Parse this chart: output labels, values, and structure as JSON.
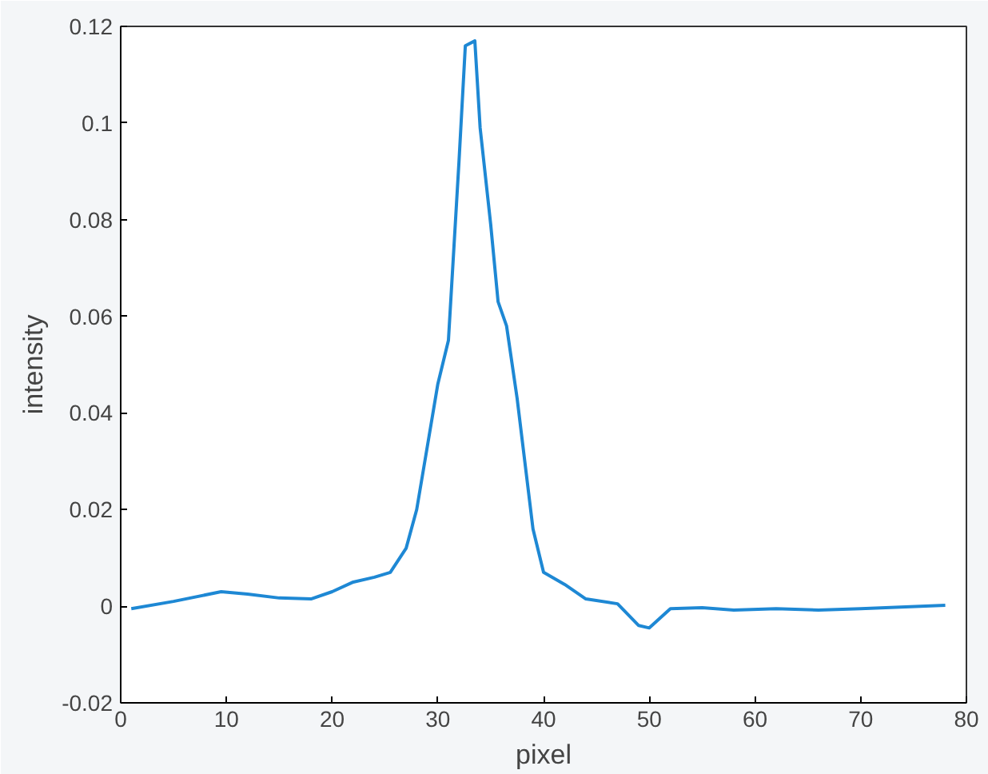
{
  "chart_data": {
    "type": "line",
    "xlabel": "pixel",
    "ylabel": "intensity",
    "x": [
      1,
      5,
      9.5,
      12,
      15,
      18,
      20,
      22,
      24,
      25.5,
      27,
      28,
      29,
      30,
      31,
      32,
      32.6,
      33.5,
      34,
      35,
      35.7,
      36.5,
      37.5,
      39,
      40,
      42,
      44,
      47,
      49,
      50,
      52,
      55,
      58,
      62,
      66,
      70,
      78
    ],
    "series": [
      {
        "color": "#1e88d4",
        "values": [
          -0.0005,
          0.001,
          0.003,
          0.0025,
          0.0017,
          0.0015,
          0.003,
          0.005,
          0.006,
          0.007,
          0.012,
          0.02,
          0.033,
          0.046,
          0.055,
          0.092,
          0.116,
          0.117,
          0.099,
          0.079,
          0.063,
          0.058,
          0.043,
          0.016,
          0.007,
          0.0045,
          0.0015,
          0.0005,
          -0.004,
          -0.0045,
          -0.0005,
          -0.0003,
          -0.0008,
          -0.0005,
          -0.0008,
          -0.0005,
          0.0002
        ]
      }
    ],
    "xlim": [
      0,
      80
    ],
    "xticks": [
      0,
      10,
      20,
      30,
      40,
      50,
      60,
      70,
      80
    ],
    "ylim": [
      -0.02,
      0.12
    ],
    "yticks": [
      -0.02,
      0,
      0.02,
      0.04,
      0.06,
      0.08,
      0.1,
      0.12
    ],
    "line_style": "solid"
  }
}
